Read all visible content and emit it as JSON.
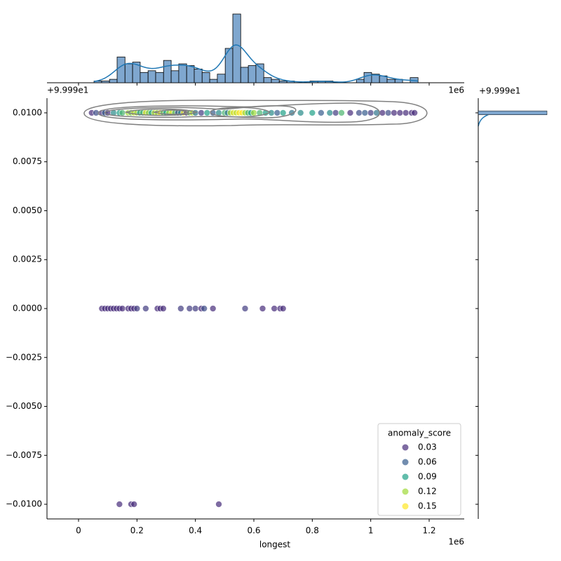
{
  "chart_data": {
    "type": "scatter",
    "x_label": "longest",
    "x_offset_label": "1e6",
    "y_offset_label": "+9.999e1",
    "xlim": [
      -0.108,
      1.32
    ],
    "ylim": [
      -0.01075,
      0.01075
    ],
    "xticks": [
      0.0,
      0.2,
      0.4,
      0.6,
      0.8,
      1.0,
      1.2
    ],
    "yticks": [
      {
        "value": 0.01,
        "label": "0.0100"
      },
      {
        "value": 0.0075,
        "label": "0.0075"
      },
      {
        "value": 0.005,
        "label": "0.0050"
      },
      {
        "value": 0.0025,
        "label": "0.0025"
      },
      {
        "value": 0,
        "label": "0.0000"
      },
      {
        "value": -0.0025,
        "label": "−0.0025"
      },
      {
        "value": -0.005,
        "label": "−0.0050"
      },
      {
        "value": -0.0075,
        "label": "−0.0075"
      },
      {
        "value": -0.01,
        "label": "−0.0100"
      }
    ],
    "legend": {
      "title": "anomaly_score",
      "corner": "lower right",
      "entries": [
        {
          "name": "0.03",
          "value": 0.03,
          "color": "#472c7a"
        },
        {
          "name": "0.06",
          "value": 0.06,
          "color": "#365c8d"
        },
        {
          "name": "0.09",
          "value": 0.09,
          "color": "#1fa187"
        },
        {
          "name": "0.12",
          "value": 0.12,
          "color": "#a0da39"
        },
        {
          "name": "0.15",
          "value": 0.15,
          "color": "#fde725"
        }
      ]
    },
    "points": {
      "x": [
        0.045,
        0.06,
        0.08,
        0.09,
        0.1,
        0.12,
        0.14,
        0.15,
        0.17,
        0.18,
        0.19,
        0.2,
        0.21,
        0.22,
        0.23,
        0.24,
        0.25,
        0.26,
        0.27,
        0.28,
        0.29,
        0.3,
        0.31,
        0.32,
        0.33,
        0.34,
        0.35,
        0.36,
        0.37,
        0.38,
        0.39,
        0.4,
        0.42,
        0.44,
        0.46,
        0.48,
        0.5,
        0.51,
        0.52,
        0.53,
        0.54,
        0.55,
        0.56,
        0.57,
        0.58,
        0.59,
        0.6,
        0.62,
        0.64,
        0.66,
        0.68,
        0.7,
        0.73,
        0.76,
        0.8,
        0.83,
        0.86,
        0.88,
        0.9,
        0.93,
        0.96,
        0.98,
        1.0,
        1.02,
        1.04,
        1.06,
        1.08,
        1.1,
        1.12,
        1.14,
        1.15,
        0.08,
        0.09,
        0.1,
        0.11,
        0.12,
        0.13,
        0.14,
        0.15,
        0.17,
        0.18,
        0.19,
        0.2,
        0.23,
        0.27,
        0.28,
        0.29,
        0.35,
        0.38,
        0.4,
        0.42,
        0.43,
        0.46,
        0.57,
        0.63,
        0.67,
        0.69,
        0.7,
        0.14,
        0.18,
        0.19,
        0.48
      ],
      "y": [
        0.01,
        0.01,
        0.01,
        0.01,
        0.01,
        0.01,
        0.01,
        0.01,
        0.01,
        0.01,
        0.01,
        0.01,
        0.01,
        0.01,
        0.01,
        0.01,
        0.01,
        0.01,
        0.01,
        0.01,
        0.01,
        0.01,
        0.01,
        0.01,
        0.01,
        0.01,
        0.01,
        0.01,
        0.01,
        0.01,
        0.01,
        0.01,
        0.01,
        0.01,
        0.01,
        0.01,
        0.01,
        0.01,
        0.01,
        0.01,
        0.01,
        0.01,
        0.01,
        0.01,
        0.01,
        0.01,
        0.01,
        0.01,
        0.01,
        0.01,
        0.01,
        0.01,
        0.01,
        0.01,
        0.01,
        0.01,
        0.01,
        0.01,
        0.01,
        0.01,
        0.01,
        0.01,
        0.01,
        0.01,
        0.01,
        0.01,
        0.01,
        0.01,
        0.01,
        0.01,
        0.01,
        0,
        0,
        0,
        0,
        0,
        0,
        0,
        0,
        0,
        0,
        0,
        0,
        0,
        0,
        0,
        0,
        0,
        0,
        0,
        0,
        0,
        0,
        0,
        0,
        0,
        0,
        0,
        -0.01,
        -0.01,
        -0.01,
        -0.01
      ],
      "score": [
        0.03,
        0.05,
        0.02,
        0.06,
        0.03,
        0.08,
        0.09,
        0.1,
        0.12,
        0.11,
        0.13,
        0.12,
        0.09,
        0.1,
        0.14,
        0.11,
        0.09,
        0.13,
        0.12,
        0.15,
        0.1,
        0.09,
        0.12,
        0.14,
        0.1,
        0.05,
        0.08,
        0.15,
        0.03,
        0.11,
        0.13,
        0.07,
        0.04,
        0.09,
        0.06,
        0.08,
        0.1,
        0.07,
        0.12,
        0.14,
        0.13,
        0.15,
        0.16,
        0.12,
        0.1,
        0.09,
        0.12,
        0.1,
        0.09,
        0.08,
        0.06,
        0.09,
        0.07,
        0.08,
        0.09,
        0.06,
        0.08,
        0.04,
        0.1,
        0.03,
        0.05,
        0.06,
        0.04,
        0.07,
        0.03,
        0.05,
        0.02,
        0.03,
        0.02,
        0.01,
        0.02,
        0.02,
        0.03,
        0.01,
        0.02,
        0.03,
        0.02,
        0.01,
        0.03,
        0.02,
        0.01,
        0.03,
        0.04,
        0.04,
        0.03,
        0.02,
        0.03,
        0.04,
        0.04,
        0.04,
        0.03,
        0.05,
        0.02,
        0.04,
        0.03,
        0.03,
        0.03,
        0.02,
        0.01,
        0.01,
        0.03,
        0.01
      ]
    },
    "x_hist": {
      "color": "#7fa7cf",
      "bins": [
        0.053,
        0.079,
        0.106,
        0.132,
        0.159,
        0.185,
        0.211,
        0.238,
        0.264,
        0.291,
        0.317,
        0.343,
        0.37,
        0.396,
        0.423,
        0.449,
        0.475,
        0.502,
        0.528,
        0.555,
        0.581,
        0.607,
        0.634,
        0.66,
        0.687,
        0.713,
        0.739,
        0.766,
        0.792,
        0.819,
        0.845,
        0.871,
        0.898,
        0.924,
        0.951,
        0.977,
        1.003,
        1.03,
        1.056,
        1.083,
        1.109,
        1.135,
        1.162
      ],
      "counts": [
        1,
        1,
        2,
        15,
        11,
        12,
        6,
        7,
        6,
        13,
        7,
        11,
        10,
        8,
        6,
        2,
        5,
        20,
        40,
        9,
        10,
        11,
        3,
        2,
        1,
        1,
        0,
        0,
        1,
        1,
        1,
        0,
        0,
        0,
        2,
        6,
        5,
        4,
        2,
        2,
        0,
        3
      ]
    },
    "y_hist": {
      "bins": [
        0.0099,
        0.0101
      ],
      "counts": [
        1
      ]
    }
  }
}
